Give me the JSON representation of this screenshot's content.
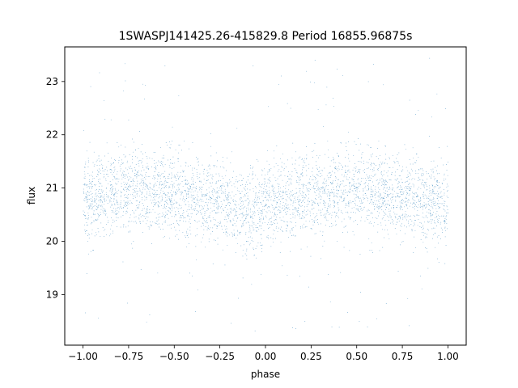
{
  "chart_data": {
    "type": "scatter",
    "title": "1SWASPJ141425.26-415829.8 Period 16855.96875s",
    "xlabel": "phase",
    "ylabel": "flux",
    "xlim": [
      -1.1,
      1.1
    ],
    "ylim": [
      18.05,
      23.65
    ],
    "x_ticks": [
      -1.0,
      -0.75,
      -0.5,
      -0.25,
      0.0,
      0.25,
      0.5,
      0.75,
      1.0
    ],
    "x_tick_labels": [
      "−1.00",
      "−0.75",
      "−0.50",
      "−0.25",
      "0.00",
      "0.25",
      "0.50",
      "0.75",
      "1.00"
    ],
    "y_ticks": [
      19,
      20,
      21,
      22,
      23
    ],
    "y_tick_labels": [
      "19",
      "20",
      "21",
      "22",
      "23"
    ],
    "grid": false,
    "legend": "none",
    "point_color": "#1f77b4",
    "series": [
      {
        "x": [
          -1.0,
          -0.9,
          -0.8,
          -0.7,
          -0.6,
          -0.5,
          -0.4,
          -0.3,
          -0.2,
          -0.1,
          0.0,
          0.1,
          0.2,
          0.3,
          0.4,
          0.5,
          0.6,
          0.7,
          0.8,
          0.9,
          1.0
        ],
        "y": [
          20.72,
          20.86,
          20.95,
          21.0,
          20.96,
          20.88,
          20.82,
          20.76,
          20.66,
          20.58,
          20.6,
          20.74,
          20.87,
          20.96,
          21.0,
          20.96,
          20.9,
          20.86,
          20.8,
          20.72,
          20.72
        ],
        "y_spread": 0.38,
        "y_min": 18.3,
        "y_max": 23.45,
        "n_points": 40000
      }
    ]
  }
}
